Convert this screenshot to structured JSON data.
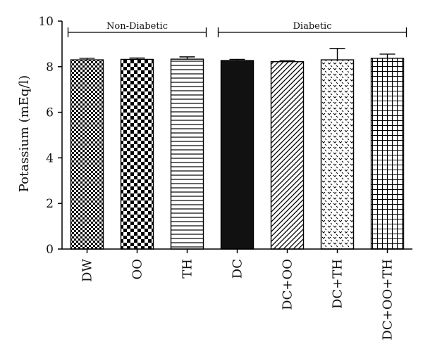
{
  "chart_data": {
    "type": "bar",
    "ylabel": "Potassium (mEq/l)",
    "xlabel": "",
    "ylim": [
      0,
      10
    ],
    "yticks": [
      "0",
      "2",
      "4",
      "6",
      "8",
      "10"
    ],
    "grid": false,
    "categories": [
      "DW",
      "OO",
      "TH",
      "DC",
      "DC+OO",
      "DC+TH",
      "DC+OO+TH"
    ],
    "values": [
      8.3,
      8.32,
      8.33,
      8.27,
      8.22,
      8.3,
      8.37
    ],
    "errors": [
      0.07,
      0.06,
      0.1,
      0.05,
      0.04,
      0.5,
      0.18
    ],
    "patterns": [
      "fine-checker",
      "coarse-checker",
      "horizontal-lines",
      "solid-black",
      "diagonal-lines",
      "dotted",
      "grid"
    ],
    "groups": [
      {
        "label": "Non-Diabetic",
        "from": 0,
        "to": 2
      },
      {
        "label": "Diabetic",
        "from": 3,
        "to": 6
      }
    ]
  }
}
